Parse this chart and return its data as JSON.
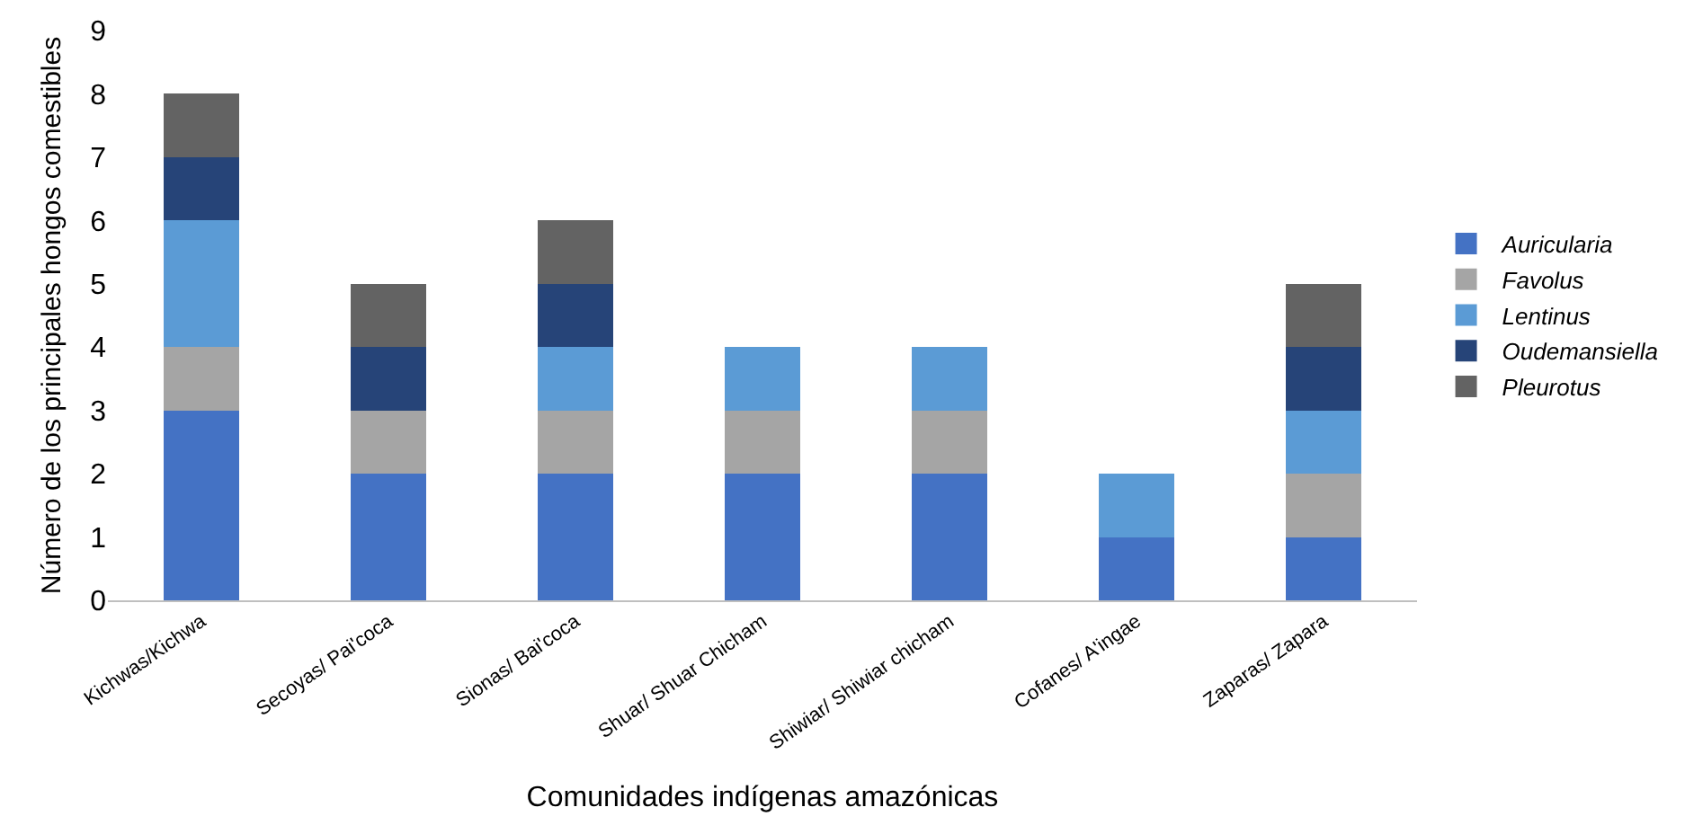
{
  "chart_data": {
    "type": "bar",
    "stacked": true,
    "xlabel": "Comunidades indígenas amazónicas",
    "ylabel": "Número de los principales hongos comestibles",
    "categories": [
      "Kichwas/Kichwa",
      "Secoyas/ Pai'coca",
      "Sionas/ Bai'coca",
      "Shuar/ Shuar Chicham",
      "Shiwiar/ Shiwiar chicham",
      "Cofanes/ A'ingae",
      "Zaparas/ Zapara"
    ],
    "series": [
      {
        "name": "Auricularia",
        "color": "#4472c4",
        "values": [
          3,
          2,
          2,
          2,
          2,
          1,
          1
        ]
      },
      {
        "name": "Favolus",
        "color": "#a5a5a5",
        "values": [
          1,
          1,
          1,
          1,
          1,
          0,
          1
        ]
      },
      {
        "name": "Lentinus",
        "color": "#5b9bd5",
        "values": [
          2,
          0,
          1,
          1,
          1,
          1,
          1
        ]
      },
      {
        "name": "Oudemansiella",
        "color": "#264478",
        "values": [
          1,
          1,
          1,
          0,
          0,
          0,
          1
        ]
      },
      {
        "name": "Pleurotus",
        "color": "#636363",
        "values": [
          1,
          1,
          1,
          0,
          0,
          0,
          1
        ]
      }
    ],
    "ylim": [
      0,
      9
    ],
    "yticks": [
      0,
      1,
      2,
      3,
      4,
      5,
      6,
      7,
      8,
      9
    ],
    "grid": false,
    "legend": "right"
  }
}
